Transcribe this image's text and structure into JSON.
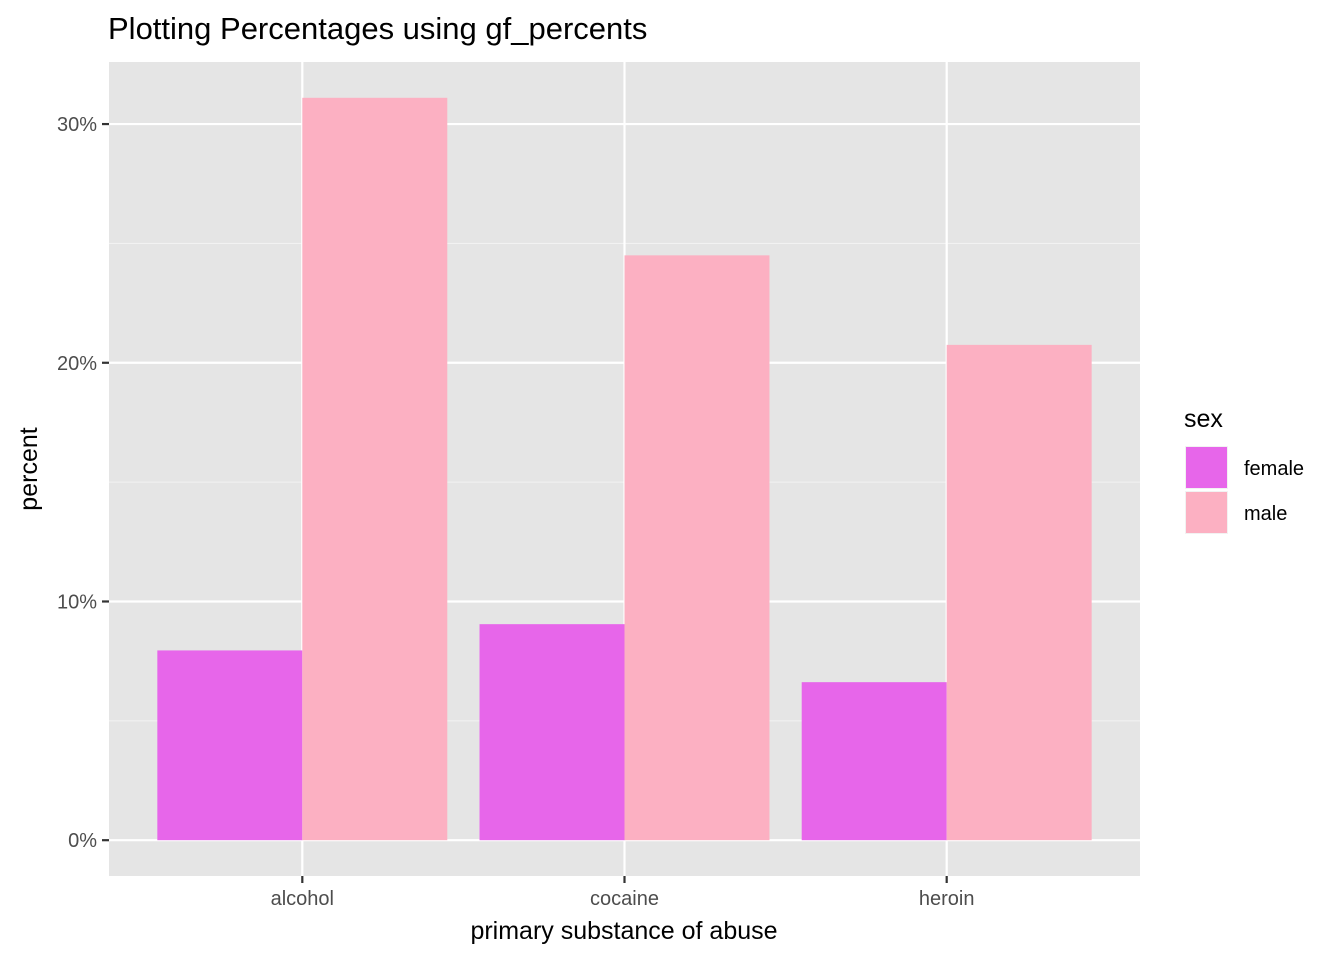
{
  "chart_data": {
    "type": "bar",
    "title": "Plotting Percentages using gf_percents",
    "xlabel": "primary substance of abuse",
    "ylabel": "percent",
    "categories": [
      "alcohol",
      "cocaine",
      "heroin"
    ],
    "series": [
      {
        "name": "female",
        "color": "#E766EA",
        "values": [
          7.95,
          9.05,
          6.62
        ]
      },
      {
        "name": "male",
        "color": "#FCB0C2",
        "values": [
          31.1,
          24.5,
          20.75
        ]
      }
    ],
    "ylim": [
      -1.5,
      32.6
    ],
    "yticks": [
      0,
      10,
      20,
      30
    ],
    "ytick_labels": [
      "0%",
      "10%",
      "20%",
      "30%"
    ],
    "grid": true,
    "panel_background": "#E5E5E5",
    "legend": {
      "title": "sex",
      "position": "right"
    }
  }
}
